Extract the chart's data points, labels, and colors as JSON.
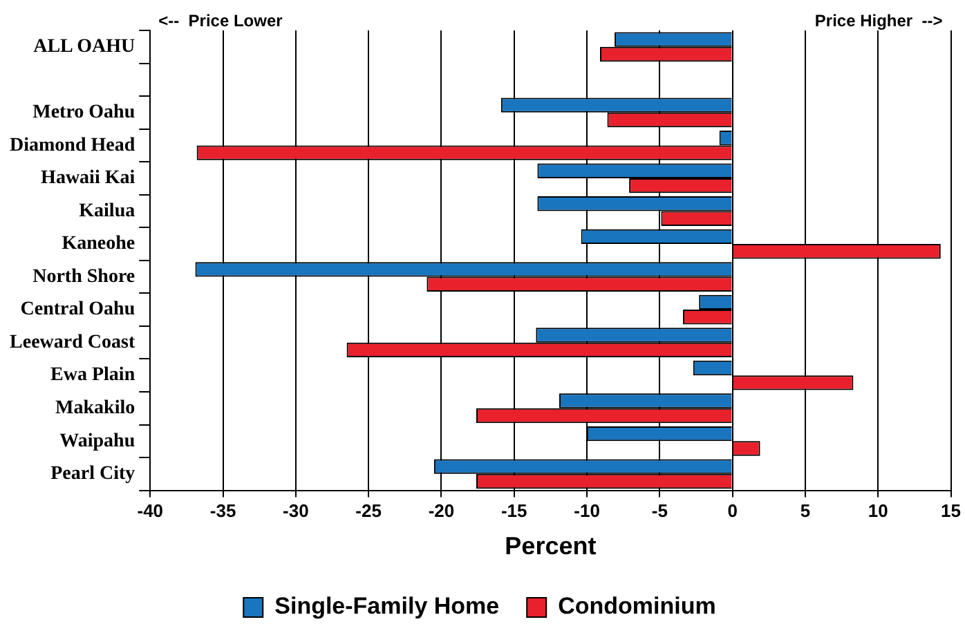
{
  "chart_data": {
    "type": "bar",
    "orientation": "horizontal",
    "xlabel": "Percent",
    "categories": [
      "ALL OAHU",
      null,
      "Metro Oahu",
      "Diamond Head",
      "Hawaii Kai",
      "Kailua",
      "Kaneohe",
      "North Shore",
      "Central Oahu",
      "Leeward Coast",
      "Ewa Plain",
      "Makakilo",
      "Waipahu",
      "Pearl City"
    ],
    "series": [
      {
        "name": "Single-Family Home",
        "color": "#1a75bf",
        "values": [
          -8.1,
          null,
          -15.9,
          -0.9,
          -13.4,
          -13.4,
          -10.4,
          -36.9,
          -2.3,
          -13.5,
          -2.7,
          -11.9,
          -10.0,
          -20.5
        ]
      },
      {
        "name": "Condominium",
        "color": "#e8212d",
        "values": [
          -9.1,
          null,
          -8.6,
          -36.8,
          -7.1,
          -4.9,
          14.3,
          -21.0,
          -3.4,
          -26.5,
          8.3,
          -17.6,
          1.9,
          -17.6
        ]
      }
    ],
    "xlim": [
      -40,
      15
    ],
    "xticks": [
      -40,
      -35,
      -30,
      -25,
      -20,
      -15,
      -10,
      -5,
      0,
      5,
      10,
      15
    ],
    "grid": "x",
    "legend": "bottom",
    "annotations": [
      "<--  Price Lower",
      "Price Higher  -->"
    ]
  }
}
